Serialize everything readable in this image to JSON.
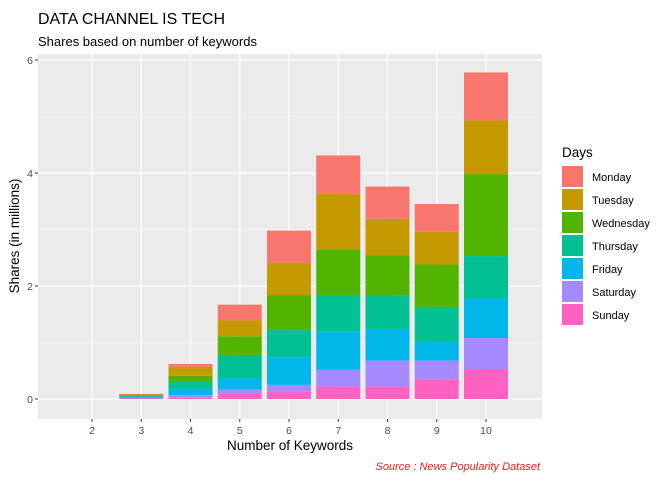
{
  "chart_data": {
    "type": "bar",
    "stacked": true,
    "title": "DATA CHANNEL IS TECH",
    "subtitle": "Shares based on number of keywords",
    "xlabel": "Number of Keywords",
    "ylabel": "Shares (in millions)",
    "caption": "Source : News Popularity Dataset",
    "categories": [
      "2",
      "3",
      "4",
      "5",
      "6",
      "7",
      "8",
      "9",
      "10"
    ],
    "ylim": [
      0,
      6.1
    ],
    "yticks": [
      0,
      2,
      4,
      6
    ],
    "ytick_labels": [
      "0",
      "2",
      "4",
      "6"
    ],
    "grid": true,
    "legend": {
      "title": "Days",
      "position": "right"
    },
    "series": [
      {
        "name": "Sunday",
        "color": "#FF61C3",
        "values": [
          0.0,
          0.01,
          0.03,
          0.1,
          0.13,
          0.22,
          0.22,
          0.35,
          0.53
        ]
      },
      {
        "name": "Saturday",
        "color": "#A58AFF",
        "values": [
          0.0,
          0.01,
          0.04,
          0.07,
          0.12,
          0.3,
          0.46,
          0.33,
          0.55
        ]
      },
      {
        "name": "Friday",
        "color": "#00B6EB",
        "values": [
          0.0,
          0.02,
          0.11,
          0.2,
          0.49,
          0.67,
          0.56,
          0.33,
          0.7
        ]
      },
      {
        "name": "Thursday",
        "color": "#00C094",
        "values": [
          0.0,
          0.02,
          0.12,
          0.41,
          0.48,
          0.65,
          0.59,
          0.61,
          0.75
        ]
      },
      {
        "name": "Wednesday",
        "color": "#53B400",
        "values": [
          0.0,
          0.01,
          0.11,
          0.33,
          0.62,
          0.81,
          0.71,
          0.76,
          1.45
        ]
      },
      {
        "name": "Tuesday",
        "color": "#C49A00",
        "values": [
          0.0,
          0.01,
          0.16,
          0.28,
          0.57,
          0.98,
          0.65,
          0.58,
          0.95
        ]
      },
      {
        "name": "Monday",
        "color": "#F8766D",
        "values": [
          0.0,
          0.01,
          0.05,
          0.28,
          0.57,
          0.68,
          0.57,
          0.49,
          0.85
        ]
      }
    ]
  }
}
